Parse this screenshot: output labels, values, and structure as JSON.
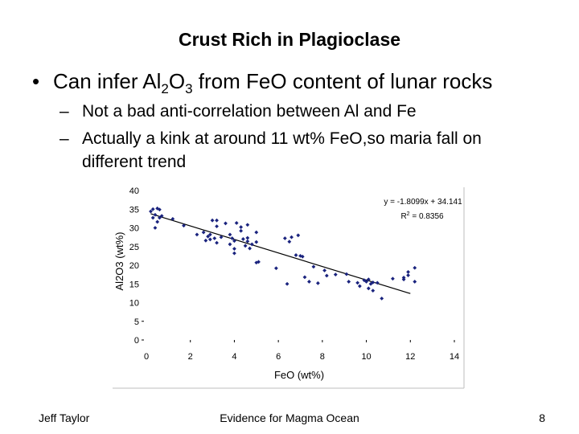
{
  "slide": {
    "title": "Crust Rich in Plagioclase",
    "bullet_prefix": "Can infer Al",
    "bullet_sub1": "2",
    "bullet_mid": "O",
    "bullet_sub2": "3",
    "bullet_suffix": " from FeO content of lunar rocks",
    "subpoints": [
      "Not a bad anti-correlation between Al and Fe",
      "Actually a kink at around 11 wt% FeO,so maria fall on",
      "different trend"
    ],
    "footer_left": "Jeff Taylor",
    "footer_center": "Evidence for Magma Ocean",
    "page_number": "8"
  },
  "chart_data": {
    "type": "scatter",
    "xlabel": "FeO (wt%)",
    "ylabel": "Al2O3 (wt%)",
    "xlim": [
      0,
      14
    ],
    "ylim": [
      0,
      40
    ],
    "xticks": [
      "0",
      "2",
      "4",
      "6",
      "8",
      "10",
      "12",
      "14"
    ],
    "yticks": [
      "0",
      "5",
      "10",
      "15",
      "20",
      "25",
      "30",
      "35",
      "40"
    ],
    "point_color": "#1a237e",
    "trendline": {
      "slope": -1.8099,
      "intercept": 34.141,
      "x_range": [
        0.2,
        12
      ]
    },
    "equation_label": "y = -1.8099x + 34.141",
    "r2_prefix": "R",
    "r2_sup": "2",
    "r2_suffix": " = 0.8356",
    "points": [
      [
        0.3,
        35
      ],
      [
        0.5,
        35.2
      ],
      [
        0.6,
        34.9
      ],
      [
        0.2,
        34.4
      ],
      [
        0.4,
        33.5
      ],
      [
        0.3,
        32.7
      ],
      [
        0.6,
        32.7
      ],
      [
        0.7,
        33.2
      ],
      [
        0.5,
        31.6
      ],
      [
        0.4,
        30
      ],
      [
        1.2,
        32.4
      ],
      [
        1.7,
        30.6
      ],
      [
        2.3,
        28.2
      ],
      [
        2.6,
        28.8
      ],
      [
        2.8,
        27.7
      ],
      [
        2.9,
        28.2
      ],
      [
        2.7,
        26.6
      ],
      [
        2.9,
        26.9
      ],
      [
        3.1,
        27.2
      ],
      [
        3.2,
        26
      ],
      [
        3.4,
        27.5
      ],
      [
        3.2,
        30.4
      ],
      [
        3.0,
        32
      ],
      [
        3.2,
        32
      ],
      [
        3.6,
        31.2
      ],
      [
        3.8,
        28.2
      ],
      [
        3.9,
        27.2
      ],
      [
        4.0,
        26.5
      ],
      [
        3.8,
        25.6
      ],
      [
        4.0,
        24.4
      ],
      [
        4.0,
        23.2
      ],
      [
        4.3,
        30.2
      ],
      [
        4.3,
        29.2
      ],
      [
        4.4,
        27
      ],
      [
        4.6,
        27.3
      ],
      [
        4.6,
        26.4
      ],
      [
        4.8,
        25.6
      ],
      [
        4.5,
        25.2
      ],
      [
        4.7,
        24.5
      ],
      [
        4.1,
        31.3
      ],
      [
        4.6,
        30.8
      ],
      [
        5.0,
        28.8
      ],
      [
        5.0,
        26.2
      ],
      [
        5.1,
        20.9
      ],
      [
        5.0,
        20.7
      ],
      [
        5.9,
        19.2
      ],
      [
        6.4,
        15
      ],
      [
        6.3,
        27.2
      ],
      [
        6.6,
        27.5
      ],
      [
        6.9,
        28
      ],
      [
        6.5,
        26.3
      ],
      [
        6.8,
        22.7
      ],
      [
        7.0,
        22.5
      ],
      [
        7.1,
        22.3
      ],
      [
        7.2,
        16.8
      ],
      [
        7.4,
        15.6
      ],
      [
        7.6,
        19.6
      ],
      [
        7.8,
        15.2
      ],
      [
        8.1,
        18.6
      ],
      [
        8.2,
        17.2
      ],
      [
        8.6,
        17.5
      ],
      [
        9.1,
        17.6
      ],
      [
        9.2,
        15.6
      ],
      [
        9.6,
        15.3
      ],
      [
        9.7,
        14.4
      ],
      [
        9.9,
        16
      ],
      [
        10.0,
        15.6
      ],
      [
        10.1,
        16.2
      ],
      [
        10.3,
        15.4
      ],
      [
        10.5,
        15.3
      ],
      [
        10.1,
        13.8
      ],
      [
        10.3,
        13.2
      ],
      [
        10.2,
        15
      ],
      [
        10.7,
        11.1
      ],
      [
        11.2,
        16.4
      ],
      [
        11.7,
        16.7
      ],
      [
        11.7,
        16.2
      ],
      [
        11.9,
        17.3
      ],
      [
        11.9,
        18.2
      ],
      [
        12.2,
        15.6
      ],
      [
        12.2,
        19.3
      ]
    ]
  }
}
